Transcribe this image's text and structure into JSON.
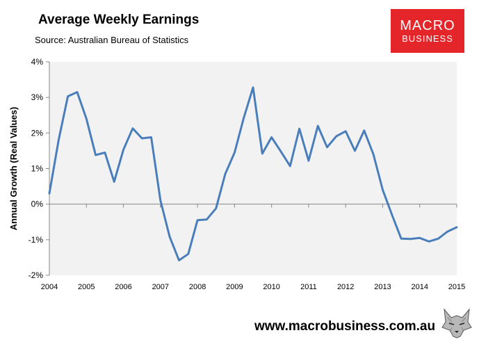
{
  "header": {
    "title": "Average Weekly Earnings",
    "subtitle": "Source: Australian Bureau of Statistics"
  },
  "logo": {
    "line1": "MACRO",
    "line2": "BUSINESS",
    "color": "#e4262b"
  },
  "footer": {
    "url": "www.macrobusiness.com.au",
    "icon": "wolf-icon"
  },
  "chart_data": {
    "type": "line",
    "title": "Average Weekly Earnings",
    "subtitle": "Source: Australian Bureau of Statistics",
    "xlabel": "",
    "ylabel": "Annual Growth (Real Values)",
    "xlim": [
      2004,
      2015
    ],
    "ylim": [
      -2,
      4
    ],
    "x_ticks": [
      "2004",
      "2005",
      "2006",
      "2007",
      "2008",
      "2009",
      "2010",
      "2011",
      "2012",
      "2013",
      "2014",
      "2015"
    ],
    "y_ticks": [
      {
        "value": -2,
        "label": "-2%"
      },
      {
        "value": -1,
        "label": "-1%"
      },
      {
        "value": 0,
        "label": "0%"
      },
      {
        "value": 1,
        "label": "1%"
      },
      {
        "value": 2,
        "label": "2%"
      },
      {
        "value": 3,
        "label": "3%"
      },
      {
        "value": 4,
        "label": "4%"
      }
    ],
    "grid": false,
    "plot_background": "#f2f2f2",
    "line_color": "#4a7ebb",
    "x": [
      2004.0,
      2004.25,
      2004.5,
      2004.75,
      2005.0,
      2005.25,
      2005.5,
      2005.75,
      2006.0,
      2006.25,
      2006.5,
      2006.75,
      2007.0,
      2007.25,
      2007.5,
      2007.75,
      2008.0,
      2008.25,
      2008.5,
      2008.75,
      2009.0,
      2009.25,
      2009.5,
      2009.75,
      2010.0,
      2010.25,
      2010.5,
      2010.75,
      2011.0,
      2011.25,
      2011.5,
      2011.75,
      2012.0,
      2012.25,
      2012.5,
      2012.75,
      2013.0,
      2013.25,
      2013.5,
      2013.75,
      2014.0,
      2014.25,
      2014.5,
      2014.75,
      2015.0
    ],
    "series": [
      {
        "values": [
          0.3,
          1.8,
          3.03,
          3.15,
          2.4,
          1.38,
          1.45,
          0.63,
          1.53,
          2.13,
          1.85,
          1.88,
          0.1,
          -0.92,
          -1.58,
          -1.4,
          -0.45,
          -0.43,
          -0.12,
          0.85,
          1.45,
          2.43,
          3.28,
          1.42,
          1.88,
          1.48,
          1.07,
          2.12,
          1.22,
          2.2,
          1.6,
          1.91,
          2.05,
          1.5,
          2.07,
          1.4,
          0.4,
          -0.3,
          -0.97,
          -0.98,
          -0.95,
          -1.05,
          -0.97,
          -0.77,
          -0.65
        ]
      }
    ]
  }
}
